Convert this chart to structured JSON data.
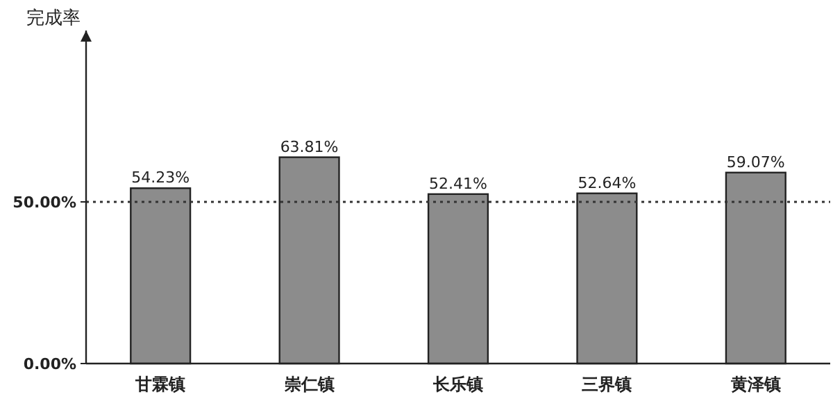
{
  "chart_data": {
    "type": "bar",
    "ylabel": "完成率",
    "categories": [
      "甘霖镇",
      "崇仁镇",
      "长乐镇",
      "三界镇",
      "黄泽镇"
    ],
    "values": [
      54.23,
      63.81,
      52.41,
      52.64,
      59.07
    ],
    "value_labels": [
      "54.23%",
      "63.81%",
      "52.41%",
      "52.64%",
      "59.07%"
    ],
    "color": "#8c8c8c",
    "ylim": [
      0,
      103
    ],
    "yticks": [
      {
        "value": 0,
        "label": "0.00%"
      },
      {
        "value": 50,
        "label": "50.00%"
      }
    ],
    "ref_lines": [
      {
        "axis": "y",
        "value": 50,
        "color": "#333333",
        "line_style": "dotted"
      }
    ]
  }
}
